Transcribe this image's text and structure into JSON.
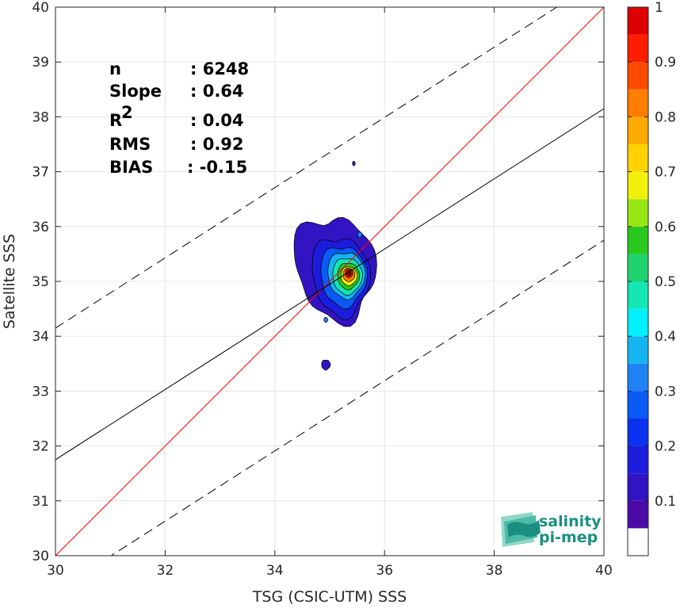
{
  "chart_data": {
    "type": "contour-density-scatter",
    "xlabel": "TSG (CSIC-UTM) SSS",
    "ylabel": "Satellite SSS",
    "xlim": [
      30,
      40
    ],
    "ylim": [
      30,
      40
    ],
    "xticks": [
      30,
      32,
      34,
      36,
      38,
      40
    ],
    "yticks": [
      30,
      31,
      32,
      33,
      34,
      35,
      36,
      37,
      38,
      39,
      40
    ],
    "grid": true,
    "stats": [
      {
        "label": "n",
        "value": ": 6248"
      },
      {
        "label": "Slope",
        "value": ": 0.64"
      },
      {
        "label": "R",
        "sup": "2",
        "value": ": 0.04"
      },
      {
        "label": "RMS",
        "value": ": 0.92"
      },
      {
        "label": "BIAS",
        "value": ": -0.15"
      }
    ],
    "lines": {
      "identity": {
        "color": "#ff0000",
        "slope": 1,
        "intercept": 0
      },
      "fit": {
        "color": "#000000",
        "slope": 0.64,
        "intercept": 12.55
      },
      "upper_dashed": {
        "color": "#000000",
        "slope": 0.64,
        "intercept": 14.95
      },
      "lower_dashed": {
        "color": "#000000",
        "slope": 0.64,
        "intercept": 10.15
      }
    },
    "density_peak": {
      "x": 35.35,
      "y": 35.15
    },
    "colorbar": {
      "ticks": [
        0.1,
        0.2,
        0.3,
        0.4,
        0.5,
        0.6,
        0.7,
        0.8,
        0.9,
        1
      ],
      "tick_labels": [
        "0.1",
        "0.2",
        "0.3",
        "0.4",
        "0.5",
        "0.6",
        "0.7",
        "0.8",
        "0.9",
        "1"
      ],
      "levels": [
        0.05,
        0.1,
        0.15,
        0.2,
        0.25,
        0.3,
        0.35,
        0.4,
        0.45,
        0.5,
        0.55,
        0.6,
        0.65,
        0.7,
        0.75,
        0.8,
        0.85,
        0.9,
        0.95,
        1.0
      ],
      "colors": [
        "#4b0aa8",
        "#3214c2",
        "#1c1cdc",
        "#0a32f0",
        "#0a5af5",
        "#1e82f5",
        "#14b4f0",
        "#00f0ff",
        "#14e6b4",
        "#1ed26e",
        "#28c81e",
        "#96e614",
        "#f0f00a",
        "#ffd200",
        "#ffaa00",
        "#ff7d00",
        "#ff4b00",
        "#ff1e00",
        "#dc0000",
        "#8c0000"
      ]
    }
  },
  "logo": {
    "line1": "salinity",
    "line2": "pi-mep"
  }
}
